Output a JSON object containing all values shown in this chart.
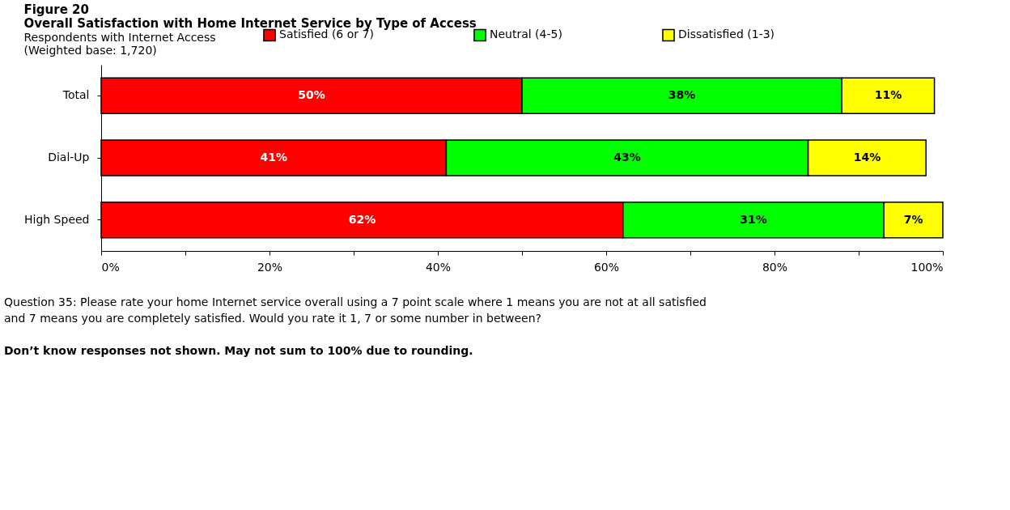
{
  "chart_data": {
    "type": "bar",
    "orientation": "horizontal",
    "stacked": true,
    "title": "Overall Satisfaction with Home Internet Service by Type of Access",
    "subtitle": "Respondents with Internet Access",
    "annotations": [
      "Figure 20",
      "(Weighted base:  1,720)",
      "Question 35:  Please rate your home Internet service overall using a 7 point scale where 1 means you are not at all satisfied and 7 means you are completely satisfied.  Would you rate it 1, 7 or some number in between?",
      "Don’t know responses not shown.  May not sum to 100% due to rounding."
    ],
    "categories": [
      "Total",
      "Dial-Up",
      "High Speed"
    ],
    "series": [
      {
        "name": "Satisfied (6 or 7)",
        "color": "#ff0000",
        "values": [
          50,
          41,
          62
        ],
        "value_labels": [
          "50%",
          "41%",
          "62%"
        ]
      },
      {
        "name": "Neutral (4-5)",
        "color": "#00ff00",
        "values": [
          38,
          43,
          31
        ],
        "value_labels": [
          "38%",
          "43%",
          "31%"
        ]
      },
      {
        "name": "Dissatisfied (1-3)",
        "color": "#ffff00",
        "values": [
          11,
          14,
          7
        ],
        "value_labels": [
          "11%",
          "14%",
          "7%"
        ]
      }
    ],
    "xlim": [
      0,
      100
    ],
    "xticks": [
      {
        "value": 0,
        "label": "0%"
      },
      {
        "value": 10,
        "label": null
      },
      {
        "value": 20,
        "label": "20%"
      },
      {
        "value": 30,
        "label": null
      },
      {
        "value": 40,
        "label": "40%"
      },
      {
        "value": 50,
        "label": null
      },
      {
        "value": 60,
        "label": "60%"
      },
      {
        "value": 70,
        "label": null
      },
      {
        "value": 80,
        "label": "80%"
      },
      {
        "value": 90,
        "label": null
      },
      {
        "value": 100,
        "label": "100%"
      }
    ],
    "grid": false,
    "legend": "top"
  }
}
